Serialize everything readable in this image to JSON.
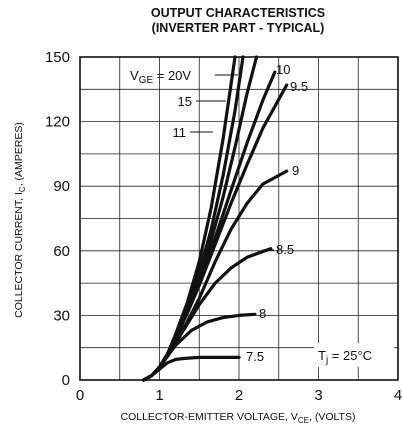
{
  "chart_data": {
    "type": "line",
    "title_lines": [
      "OUTPUT CHARACTERISTICS",
      "(INVERTER PART - TYPICAL)"
    ],
    "xlabel": "COLLECTOR-EMITTER VOLTAGE, V",
    "xlabel_sub": "CE",
    "xlabel_tail": ", (VOLTS)",
    "ylabel": "COLLECTOR CURRENT, I",
    "ylabel_sub": "C",
    "ylabel_tail": ", (AMPERES)",
    "xlim": [
      0,
      4
    ],
    "ylim": [
      0,
      150
    ],
    "x_ticks": [
      0,
      1,
      2,
      3,
      4
    ],
    "y_ticks": [
      0,
      30,
      60,
      90,
      120,
      150
    ],
    "x_tick_labels": [
      "0",
      "1",
      "2",
      "3",
      "4"
    ],
    "y_tick_labels": [
      "0",
      "30",
      "60",
      "90",
      "120",
      "150"
    ],
    "grid": true,
    "annotation": {
      "text": "T",
      "sub": "j",
      "tail": " = 25°C"
    },
    "series": [
      {
        "name": "7.5",
        "x": [
          0.8,
          0.9,
          1.0,
          1.1,
          1.2,
          1.3,
          1.5,
          1.7,
          2.0
        ],
        "y": [
          0,
          2,
          5,
          8,
          9.5,
          10,
          10.5,
          10.5,
          10.5
        ]
      },
      {
        "name": "8",
        "x": [
          0.8,
          0.9,
          1.0,
          1.1,
          1.2,
          1.4,
          1.6,
          1.8,
          2.0,
          2.2
        ],
        "y": [
          0,
          2,
          6,
          11,
          16,
          23,
          27,
          29,
          30,
          30.5
        ]
      },
      {
        "name": "8.5",
        "x": [
          0.8,
          0.9,
          1.0,
          1.1,
          1.2,
          1.35,
          1.5,
          1.7,
          1.9,
          2.1,
          2.4
        ],
        "y": [
          0,
          2,
          6,
          11,
          17,
          26,
          35,
          45,
          52,
          57,
          61
        ]
      },
      {
        "name": "9",
        "x": [
          0.8,
          0.9,
          1.0,
          1.1,
          1.2,
          1.35,
          1.5,
          1.7,
          1.9,
          2.1,
          2.3,
          2.6
        ],
        "y": [
          0,
          2,
          6,
          11,
          17,
          27,
          38,
          55,
          70,
          82,
          91,
          97
        ]
      },
      {
        "name": "9.5",
        "x": [
          0.8,
          0.9,
          1.0,
          1.1,
          1.2,
          1.35,
          1.5,
          1.7,
          1.9,
          2.1,
          2.3,
          2.6
        ],
        "y": [
          0,
          2,
          6,
          12,
          19,
          31,
          44,
          63,
          82,
          100,
          117,
          137
        ]
      },
      {
        "name": "10",
        "x": [
          0.8,
          0.9,
          1.0,
          1.1,
          1.2,
          1.35,
          1.5,
          1.7,
          1.9,
          2.1,
          2.3,
          2.45
        ],
        "y": [
          0,
          2,
          6,
          12,
          19,
          32,
          46,
          66,
          88,
          110,
          130,
          143
        ]
      },
      {
        "name": "11",
        "x": [
          0.8,
          0.9,
          1.0,
          1.1,
          1.2,
          1.35,
          1.5,
          1.65,
          1.8,
          1.95,
          2.1,
          2.22
        ],
        "y": [
          0,
          2,
          6,
          12,
          20,
          33,
          48,
          65,
          85,
          108,
          133,
          150
        ]
      },
      {
        "name": "15",
        "x": [
          0.8,
          0.9,
          1.0,
          1.1,
          1.2,
          1.35,
          1.5,
          1.65,
          1.8,
          1.95,
          2.05
        ],
        "y": [
          0,
          2,
          6,
          12,
          20,
          34,
          50,
          70,
          95,
          125,
          150
        ]
      },
      {
        "name": "V_GE = 20V",
        "x": [
          0.8,
          0.9,
          1.0,
          1.1,
          1.2,
          1.35,
          1.5,
          1.65,
          1.8,
          1.95
        ],
        "y": [
          0,
          2,
          6,
          12,
          21,
          36,
          55,
          80,
          112,
          150
        ]
      }
    ],
    "curve_labels": [
      {
        "series": "V_GE = 20V",
        "text": "V",
        "sub": "GE",
        "tail": " = 20V"
      },
      {
        "series": "15",
        "text": "15"
      },
      {
        "series": "11",
        "text": "11"
      },
      {
        "series": "10",
        "text": "10"
      },
      {
        "series": "9.5",
        "text": "9.5"
      },
      {
        "series": "9",
        "text": "9"
      },
      {
        "series": "8.5",
        "text": "8.5"
      },
      {
        "series": "8",
        "text": "8"
      },
      {
        "series": "7.5",
        "text": "7.5"
      }
    ]
  }
}
